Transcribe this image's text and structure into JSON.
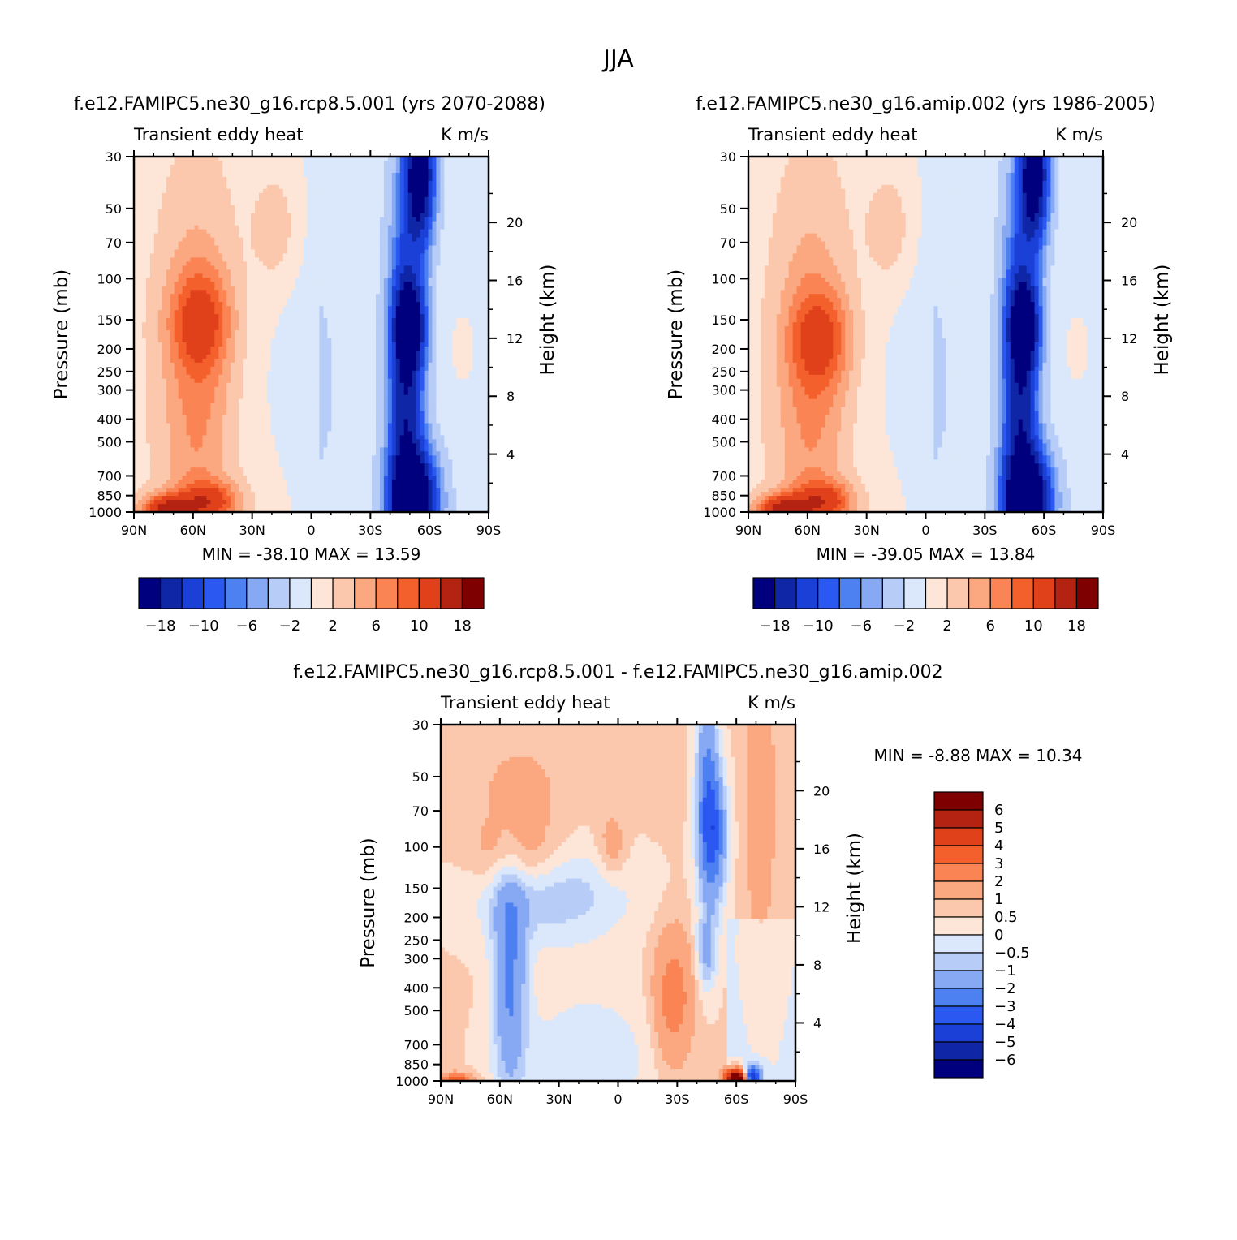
{
  "page_title": "JJA",
  "chart_data": [
    {
      "type": "heatmap",
      "id": "p1",
      "title": "f.e12.FAMIPC5.ne30_g16.rcp8.5.001 (yrs 2070-2088)",
      "variable": "Transient eddy heat",
      "units": "K m/s",
      "ylabel_left": "Pressure (mb)",
      "ylabel_right": "Height (km)",
      "x_ticks": [
        "90N",
        "60N",
        "30N",
        "0",
        "30S",
        "60S",
        "90S"
      ],
      "p_ticks": [
        "30",
        "50",
        "70",
        "100",
        "150",
        "200",
        "250",
        "300",
        "400",
        "500",
        "700",
        "850",
        "1000"
      ],
      "z_ticks": [
        "20",
        "16",
        "12",
        "8",
        "4"
      ],
      "stats": {
        "min_label": "MIN =",
        "min": "-38.10",
        "max_label": "MAX =",
        "max": "13.59"
      },
      "colorbar_labels": [
        "-18",
        "-10",
        "-6",
        "-2",
        "2",
        "6",
        "10",
        "18"
      ],
      "features": [
        {
          "lat": 55,
          "p": 150,
          "value": 8
        },
        {
          "lat": 75,
          "p": 960,
          "value": 13
        },
        {
          "lat": 50,
          "p": 900,
          "value": 9
        },
        {
          "lat": -52,
          "p": 870,
          "value": -30
        },
        {
          "lat": -55,
          "p": 40,
          "value": -25
        },
        {
          "lat": -50,
          "p": 160,
          "value": -20
        }
      ]
    },
    {
      "type": "heatmap",
      "id": "p2",
      "title": "f.e12.FAMIPC5.ne30_g16.amip.002 (yrs 1986-2005)",
      "variable": "Transient eddy heat",
      "units": "K m/s",
      "ylabel_left": "Pressure (mb)",
      "ylabel_right": "Height (km)",
      "x_ticks": [
        "90N",
        "60N",
        "30N",
        "0",
        "30S",
        "60S",
        "90S"
      ],
      "p_ticks": [
        "30",
        "50",
        "70",
        "100",
        "150",
        "200",
        "250",
        "300",
        "400",
        "500",
        "700",
        "850",
        "1000"
      ],
      "z_ticks": [
        "20",
        "16",
        "12",
        "8",
        "4"
      ],
      "stats": {
        "min_label": "MIN =",
        "min": "-39.05",
        "max_label": "MAX =",
        "max": "13.84"
      },
      "colorbar_labels": [
        "-18",
        "-10",
        "-6",
        "-2",
        "2",
        "6",
        "10",
        "18"
      ],
      "features": [
        {
          "lat": 52,
          "p": 180,
          "value": 7
        },
        {
          "lat": 75,
          "p": 960,
          "value": 13
        },
        {
          "lat": 50,
          "p": 900,
          "value": 9
        },
        {
          "lat": -52,
          "p": 870,
          "value": -32
        },
        {
          "lat": -55,
          "p": 40,
          "value": -24
        },
        {
          "lat": -50,
          "p": 200,
          "value": -20
        }
      ]
    },
    {
      "type": "heatmap",
      "id": "diff",
      "title": "f.e12.FAMIPC5.ne30_g16.rcp8.5.001 - f.e12.FAMIPC5.ne30_g16.amip.002",
      "variable": "Transient eddy heat",
      "units": "K m/s",
      "ylabel_left": "Pressure (mb)",
      "ylabel_right": "Height (km)",
      "x_ticks": [
        "90N",
        "60N",
        "30N",
        "0",
        "30S",
        "60S",
        "90S"
      ],
      "p_ticks": [
        "30",
        "50",
        "70",
        "100",
        "150",
        "200",
        "250",
        "300",
        "400",
        "500",
        "700",
        "850",
        "1000"
      ],
      "z_ticks": [
        "20",
        "16",
        "12",
        "8",
        "4"
      ],
      "stats": {
        "min_label": "MIN =",
        "min": "-8.88",
        "max_label": "MAX =",
        "max": "10.34"
      },
      "colorbar_labels": [
        "6",
        "5",
        "4",
        "3",
        "2",
        "1",
        "0.5",
        "0",
        "-0.5",
        "-1",
        "-2",
        "-3",
        "-4",
        "-5",
        "-6"
      ],
      "features": [
        {
          "lat": 55,
          "p": 110,
          "value": 1.5
        },
        {
          "lat": -48,
          "p": 100,
          "value": -3
        },
        {
          "lat": -28,
          "p": 500,
          "value": 2
        },
        {
          "lat": 55,
          "p": 400,
          "value": -2
        },
        {
          "lat": -60,
          "p": 980,
          "value": 8
        }
      ]
    }
  ],
  "colors": {
    "main_palette": [
      "#00007f",
      "#0f26a6",
      "#1b40d8",
      "#2a58f0",
      "#4d80f0",
      "#87a8f3",
      "#b7cdf7",
      "#dbe8fb",
      "#fde6d7",
      "#fcc8ad",
      "#fba880",
      "#fa8454",
      "#f4602c",
      "#e0401a",
      "#b42312",
      "#7e0000"
    ],
    "diff_palette": [
      "#7e0000",
      "#b42312",
      "#e0401a",
      "#f4602c",
      "#fa8454",
      "#fba880",
      "#fcc8ad",
      "#fde6d7",
      "#dbe8fb",
      "#b7cdf7",
      "#87a8f3",
      "#4d80f0",
      "#2a58f0",
      "#1b40d8",
      "#0f26a6",
      "#00007f"
    ]
  }
}
